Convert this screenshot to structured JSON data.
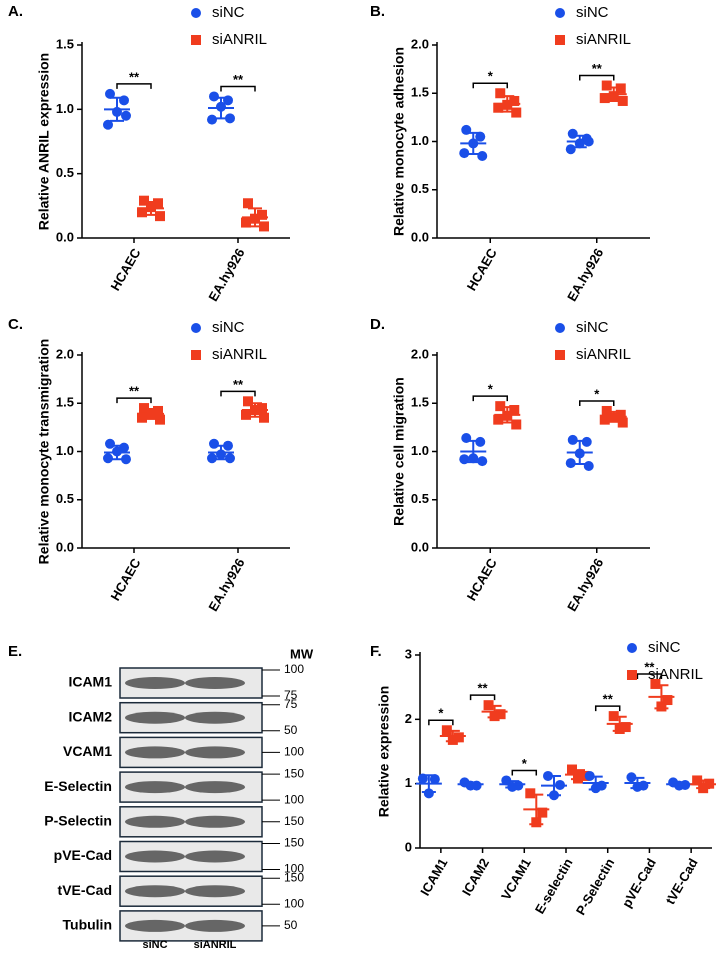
{
  "chart_data": [
    {
      "type": "dot",
      "title": "A.",
      "ylabel": "Relative ANRIL expression",
      "categories": [
        "HCAEC",
        "EA.hy926"
      ],
      "ylim": [
        0,
        1.5
      ],
      "yticks": [
        {
          "value": 0,
          "label": "0.0"
        },
        0.5,
        {
          "value": 1,
          "label": "1.0"
        },
        1.5
      ],
      "series": [
        {
          "name": "siNC",
          "color": "#1a4fe8",
          "marker": "circle",
          "values": [
            [
              1.12,
              1.07,
              0.98,
              0.88,
              0.95
            ],
            [
              1.1,
              1.07,
              1.02,
              0.92,
              0.93
            ]
          ],
          "mean": [
            1.0,
            1.01
          ],
          "sd": [
            0.09,
            0.08
          ]
        },
        {
          "name": "siANRIL",
          "color": "#f03c1e",
          "marker": "square",
          "values": [
            [
              0.29,
              0.27,
              0.24,
              0.2,
              0.17
            ],
            [
              0.27,
              0.18,
              0.15,
              0.12,
              0.09
            ]
          ],
          "mean": [
            0.23,
            0.16
          ],
          "sd": [
            0.05,
            0.07
          ]
        }
      ],
      "significance": [
        "**",
        "**"
      ]
    },
    {
      "type": "dot",
      "title": "B.",
      "ylabel": "Relative monocyte adhesion",
      "categories": [
        "HCAEC",
        "EA.hy926"
      ],
      "ylim": [
        0,
        2
      ],
      "yticks": [
        {
          "value": 0,
          "label": "0.0"
        },
        0.5,
        {
          "value": 1,
          "label": "1.0"
        },
        1.5,
        {
          "value": 2,
          "label": "2.0"
        }
      ],
      "series": [
        {
          "name": "siNC",
          "color": "#1a4fe8",
          "marker": "circle",
          "values": [
            [
              1.12,
              1.05,
              0.98,
              0.88,
              0.85
            ],
            [
              1.08,
              1.03,
              0.98,
              0.92,
              1.0
            ]
          ],
          "mean": [
            0.98,
            1.0
          ],
          "sd": [
            0.11,
            0.06
          ]
        },
        {
          "name": "siANRIL",
          "color": "#f03c1e",
          "marker": "square",
          "values": [
            [
              1.5,
              1.42,
              1.38,
              1.35,
              1.3
            ],
            [
              1.58,
              1.55,
              1.47,
              1.45,
              1.42
            ]
          ],
          "mean": [
            1.39,
            1.49
          ],
          "sd": [
            0.08,
            0.07
          ]
        }
      ],
      "significance": [
        "*",
        "**"
      ]
    },
    {
      "type": "dot",
      "title": "C.",
      "ylabel": "Relative monocyte transmigration",
      "categories": [
        "HCAEC",
        "EA.hy926"
      ],
      "ylim": [
        0,
        2
      ],
      "yticks": [
        {
          "value": 0,
          "label": "0.0"
        },
        0.5,
        {
          "value": 1,
          "label": "1.0"
        },
        1.5,
        {
          "value": 2,
          "label": "2.0"
        }
      ],
      "series": [
        {
          "name": "siNC",
          "color": "#1a4fe8",
          "marker": "circle",
          "values": [
            [
              1.08,
              1.04,
              1.0,
              0.93,
              0.92
            ],
            [
              1.08,
              1.06,
              0.97,
              0.93,
              0.93
            ]
          ],
          "mean": [
            0.99,
            0.99
          ],
          "sd": [
            0.07,
            0.07
          ]
        },
        {
          "name": "siANRIL",
          "color": "#f03c1e",
          "marker": "square",
          "values": [
            [
              1.45,
              1.42,
              1.38,
              1.35,
              1.33
            ],
            [
              1.52,
              1.45,
              1.43,
              1.38,
              1.35
            ]
          ],
          "mean": [
            1.39,
            1.43
          ],
          "sd": [
            0.05,
            0.07
          ]
        }
      ],
      "significance": [
        "**",
        "**"
      ]
    },
    {
      "type": "dot",
      "title": "D.",
      "ylabel": "Relative cell migration",
      "categories": [
        "HCAEC",
        "EA.hy926"
      ],
      "ylim": [
        0,
        2
      ],
      "yticks": [
        {
          "value": 0,
          "label": "0.0"
        },
        0.5,
        {
          "value": 1,
          "label": "1.0"
        },
        1.5,
        {
          "value": 2,
          "label": "2.0"
        }
      ],
      "series": [
        {
          "name": "siNC",
          "color": "#1a4fe8",
          "marker": "circle",
          "values": [
            [
              1.14,
              1.1,
              0.93,
              0.92,
              0.9
            ],
            [
              1.12,
              1.1,
              0.98,
              0.88,
              0.85
            ]
          ],
          "mean": [
            1.0,
            0.99
          ],
          "sd": [
            0.11,
            0.12
          ]
        },
        {
          "name": "siANRIL",
          "color": "#f03c1e",
          "marker": "square",
          "values": [
            [
              1.47,
              1.43,
              1.37,
              1.33,
              1.28
            ],
            [
              1.42,
              1.38,
              1.35,
              1.33,
              1.3
            ]
          ],
          "mean": [
            1.38,
            1.36
          ],
          "sd": [
            0.08,
            0.05
          ]
        }
      ],
      "significance": [
        "*",
        "*"
      ]
    },
    {
      "type": "blot",
      "title": "E.",
      "mw_header": "MW",
      "lanes": [
        "siNC",
        "siANRIL"
      ],
      "rows": [
        {
          "label": "ICAM1",
          "mw": [
            100,
            75
          ]
        },
        {
          "label": "ICAM2",
          "mw": [
            75,
            50
          ]
        },
        {
          "label": "VCAM1",
          "mw": [
            100
          ]
        },
        {
          "label": "E-Selectin",
          "mw": [
            150,
            100
          ]
        },
        {
          "label": "P-Selectin",
          "mw": [
            150
          ]
        },
        {
          "label": "pVE-Cad",
          "mw": [
            150,
            100
          ]
        },
        {
          "label": "tVE-Cad",
          "mw": [
            150,
            100
          ]
        },
        {
          "label": "Tubulin",
          "mw": [
            50
          ]
        }
      ]
    },
    {
      "type": "dot",
      "title": "F.",
      "ylabel": "Relative expression",
      "categories": [
        "ICAM1",
        "ICAM2",
        "VCAM1",
        "E-selectin",
        "P-Selectin",
        "pVE-Cad",
        "tVE-Cad"
      ],
      "ylim": [
        0,
        3
      ],
      "yticks": [
        0,
        1,
        2,
        3
      ],
      "series": [
        {
          "name": "siNC",
          "color": "#1a4fe8",
          "marker": "circle",
          "values": [
            [
              1.08,
              1.07,
              0.85
            ],
            [
              1.02,
              0.97,
              0.97
            ],
            [
              1.05,
              0.97,
              0.95
            ],
            [
              1.12,
              0.98,
              0.82
            ],
            [
              1.12,
              0.97,
              0.93
            ],
            [
              1.1,
              0.97,
              0.95
            ],
            [
              1.02,
              0.98,
              0.97
            ]
          ],
          "mean": [
            1.0,
            0.99,
            0.99,
            0.97,
            1.01,
            1.01,
            0.99
          ],
          "sd": [
            0.13,
            0.03,
            0.05,
            0.15,
            0.1,
            0.08,
            0.03
          ]
        },
        {
          "name": "siANRIL",
          "color": "#f03c1e",
          "marker": "square",
          "values": [
            [
              1.83,
              1.72,
              1.68
            ],
            [
              2.22,
              2.08,
              2.05
            ],
            [
              0.85,
              0.55,
              0.4
            ],
            [
              1.22,
              1.12,
              1.08
            ],
            [
              2.05,
              1.88,
              1.85
            ],
            [
              2.55,
              2.3,
              2.2
            ],
            [
              1.05,
              1.0,
              0.93
            ]
          ],
          "mean": [
            1.74,
            2.12,
            0.6,
            1.14,
            1.93,
            2.35,
            0.99
          ],
          "sd": [
            0.08,
            0.09,
            0.23,
            0.07,
            0.11,
            0.18,
            0.06
          ]
        }
      ],
      "significance": [
        "*",
        "**",
        "*",
        null,
        "**",
        "**",
        null
      ]
    }
  ]
}
